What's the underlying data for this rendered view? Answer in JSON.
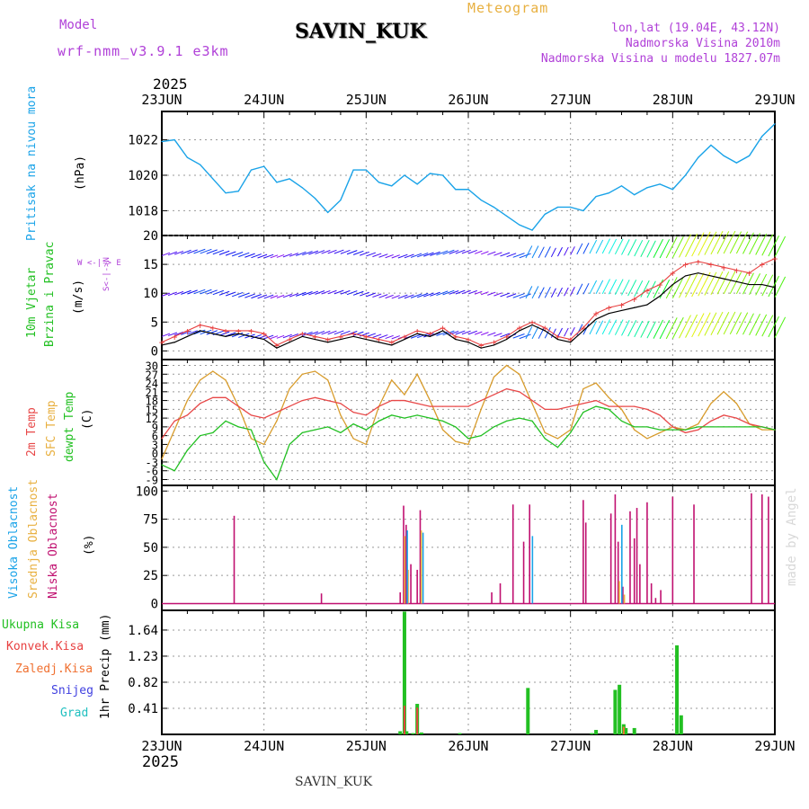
{
  "header": {
    "model_label": "Model",
    "model_name": "wrf-nmm_v3.9.1 e3km",
    "title": "SAVIN_KUK",
    "meteogram": "Meteogram",
    "lonlat": "lon,lat (19.04E, 43.12N)",
    "altitude": "Nadmorska Visina 2010m",
    "model_altitude": "Nadmorska Visina u modelu 1827.07m",
    "year_top": "2025",
    "year_bottom": "2025",
    "footer_station": "SAVIN_KUK",
    "credit": "made by Angel"
  },
  "colors": {
    "pressure": "#1aa3e8",
    "purple": "#b040d8",
    "orange": "#e8b040",
    "red": "#e84040",
    "green": "#22c022",
    "blue": "#4040e0",
    "cyan": "#20c0c0",
    "magenta": "#c01070",
    "sfc": "#d89c2c",
    "dew": "#22c022",
    "t2m": "#e84848",
    "credit": "#d8d8d8"
  },
  "panel_labels": {
    "pressure": {
      "name": "Pritisak na nivou mora",
      "unit": "(hPa)"
    },
    "wind": {
      "name1": "10m Vjetar",
      "name2": "Brzina i Pravac",
      "unit": "(m/s)",
      "compass": "W <-|-> E",
      "compass2": "S<-|->N"
    },
    "temp": {
      "name1": "2m Temp",
      "name2": "SFC Temp",
      "name3": "dewpt Temp",
      "unit": "(C)"
    },
    "cloud": {
      "name1": "Visoka Oblacnost",
      "name2": "Srednja Oblacnost",
      "name3": "Niska Oblacnost",
      "unit": "(%)"
    },
    "precip": {
      "legend": [
        "Ukupna Kisa",
        "Konvek.Kisa",
        "Zaledj.Kisa",
        "Snijeg",
        "Grad"
      ],
      "unit": "1hr Precip (mm)"
    }
  },
  "chart_data": [
    {
      "type": "line",
      "title": "Pritisak na nivou mora",
      "ylabel": "(hPa)",
      "x_unit": "hours from 23JUN 00",
      "ylim": [
        1016.6,
        1023.6
      ],
      "yticks": [
        "1018",
        "1020",
        "1022"
      ],
      "xticks": [
        "23JUN",
        "24JUN",
        "25JUN",
        "26JUN",
        "27JUN",
        "28JUN",
        "29JUN"
      ],
      "series": [
        {
          "name": "MSLP",
          "x": [
            0,
            3,
            6,
            9,
            12,
            15,
            18,
            21,
            24,
            27,
            30,
            33,
            36,
            39,
            42,
            45,
            48,
            51,
            54,
            57,
            60,
            63,
            66,
            69,
            72,
            75,
            78,
            81,
            84,
            87,
            90,
            93,
            96,
            99,
            102,
            105,
            108,
            111,
            114,
            117,
            120,
            123,
            126,
            129,
            132,
            135,
            138,
            141,
            144
          ],
          "values": [
            1021.9,
            1022.0,
            1021.0,
            1020.6,
            1019.8,
            1019.0,
            1019.1,
            1020.3,
            1020.5,
            1019.6,
            1019.8,
            1019.3,
            1018.7,
            1017.9,
            1018.6,
            1020.3,
            1020.3,
            1019.6,
            1019.4,
            1020.0,
            1019.5,
            1020.1,
            1020.0,
            1019.2,
            1019.2,
            1018.6,
            1018.2,
            1017.7,
            1017.2,
            1016.9,
            1017.8,
            1018.2,
            1018.2,
            1018.0,
            1018.8,
            1019.0,
            1019.4,
            1018.9,
            1019.3,
            1019.5,
            1019.2,
            1020.0,
            1021.0,
            1021.7,
            1021.1,
            1020.7,
            1021.1,
            1022.2,
            1022.9
          ]
        }
      ]
    },
    {
      "type": "line",
      "title": "10m Vjetar Brzina i Pravac",
      "ylabel": "(m/s)",
      "ylim": [
        -1.5,
        20
      ],
      "yticks": [
        "0",
        "5",
        "10",
        "15",
        "20"
      ],
      "series": [
        {
          "name": "wind speed",
          "x": [
            0,
            3,
            6,
            9,
            12,
            15,
            18,
            21,
            24,
            27,
            30,
            33,
            36,
            39,
            42,
            45,
            48,
            51,
            54,
            57,
            60,
            63,
            66,
            69,
            72,
            75,
            78,
            81,
            84,
            87,
            90,
            93,
            96,
            99,
            102,
            105,
            108,
            111,
            114,
            117,
            120,
            123,
            126,
            129,
            132,
            135,
            138,
            141,
            144
          ],
          "values": [
            1.0,
            1.5,
            2.5,
            3.5,
            3.0,
            2.5,
            3.0,
            2.5,
            2.0,
            0.5,
            1.5,
            2.5,
            2.0,
            1.5,
            2.0,
            2.5,
            2.0,
            1.5,
            1.0,
            2.0,
            3.0,
            2.5,
            3.5,
            2.0,
            1.5,
            0.5,
            1.0,
            2.0,
            3.5,
            4.5,
            3.5,
            2.0,
            1.5,
            3.5,
            5.5,
            6.5,
            7.0,
            7.5,
            8.0,
            9.5,
            11.5,
            13.0,
            13.5,
            13.0,
            12.5,
            12.0,
            11.5,
            11.5,
            11.0
          ]
        },
        {
          "name": "wind gust",
          "x": [
            0,
            3,
            6,
            9,
            12,
            15,
            18,
            21,
            24,
            27,
            30,
            33,
            36,
            39,
            42,
            45,
            48,
            51,
            54,
            57,
            60,
            63,
            66,
            69,
            72,
            75,
            78,
            81,
            84,
            87,
            90,
            93,
            96,
            99,
            102,
            105,
            108,
            111,
            114,
            117,
            120,
            123,
            126,
            129,
            132,
            135,
            138,
            141,
            144
          ],
          "values": [
            1.5,
            2.5,
            3.5,
            4.5,
            4.0,
            3.5,
            3.5,
            3.5,
            3.0,
            1.0,
            2.0,
            3.0,
            2.5,
            2.0,
            2.5,
            3.0,
            2.5,
            2.0,
            1.5,
            2.5,
            3.5,
            3.0,
            4.0,
            2.5,
            2.0,
            1.0,
            1.5,
            2.5,
            4.0,
            5.0,
            4.0,
            2.5,
            2.0,
            4.0,
            6.5,
            7.5,
            8.0,
            9.0,
            10.5,
            11.5,
            13.5,
            15.0,
            15.5,
            15.0,
            14.5,
            14.0,
            13.5,
            15.0,
            16.0
          ]
        }
      ]
    },
    {
      "type": "line",
      "title": "2m Temp / SFC Temp / dewpt Temp",
      "ylabel": "(C)",
      "ylim": [
        -11,
        32
      ],
      "yticks": [
        "-9",
        "-6",
        "-3",
        "0",
        "3",
        "6",
        "9",
        "12",
        "15",
        "18",
        "21",
        "24",
        "27",
        "30"
      ],
      "series": [
        {
          "name": "2m Temp",
          "x": [
            0,
            3,
            6,
            9,
            12,
            15,
            18,
            21,
            24,
            27,
            30,
            33,
            36,
            39,
            42,
            45,
            48,
            51,
            54,
            57,
            60,
            63,
            66,
            69,
            72,
            75,
            78,
            81,
            84,
            87,
            90,
            93,
            96,
            99,
            102,
            105,
            108,
            111,
            114,
            117,
            120,
            123,
            126,
            129,
            132,
            135,
            138,
            141,
            144
          ],
          "values": [
            5,
            11,
            13,
            17,
            19,
            19,
            16,
            13,
            12,
            14,
            16,
            18,
            19,
            18,
            17,
            14,
            13,
            16,
            18,
            18,
            17,
            16,
            16,
            16,
            16,
            18,
            20,
            22,
            21,
            18,
            15,
            15,
            16,
            17,
            18,
            16,
            16,
            16,
            15,
            13,
            9,
            7,
            8,
            11,
            13,
            12,
            10,
            9,
            8
          ]
        },
        {
          "name": "SFC Temp",
          "x": [
            0,
            3,
            6,
            9,
            12,
            15,
            18,
            21,
            24,
            27,
            30,
            33,
            36,
            39,
            42,
            45,
            48,
            51,
            54,
            57,
            60,
            63,
            66,
            69,
            72,
            75,
            78,
            81,
            84,
            87,
            90,
            93,
            96,
            99,
            102,
            105,
            108,
            111,
            114,
            117,
            120,
            123,
            126,
            129,
            132,
            135,
            138,
            141,
            144
          ],
          "values": [
            -2,
            8,
            18,
            25,
            28,
            25,
            16,
            5,
            3,
            11,
            22,
            27,
            28,
            25,
            13,
            5,
            3,
            16,
            25,
            20,
            27,
            18,
            8,
            4,
            3,
            15,
            26,
            30,
            27,
            17,
            7,
            5,
            8,
            22,
            24,
            19,
            15,
            8,
            5,
            7,
            9,
            8,
            10,
            17,
            21,
            17,
            10,
            8,
            8
          ]
        },
        {
          "name": "dewpt Temp",
          "x": [
            0,
            3,
            6,
            9,
            12,
            15,
            18,
            21,
            24,
            27,
            30,
            33,
            36,
            39,
            42,
            45,
            48,
            51,
            54,
            57,
            60,
            63,
            66,
            69,
            72,
            75,
            78,
            81,
            84,
            87,
            90,
            93,
            96,
            99,
            102,
            105,
            108,
            111,
            114,
            117,
            120,
            123,
            126,
            129,
            132,
            135,
            138,
            141,
            144
          ],
          "values": [
            -4,
            -6,
            1,
            6,
            7,
            11,
            9,
            8,
            -3,
            -9,
            3,
            7,
            8,
            9,
            7,
            10,
            8,
            11,
            13,
            12,
            13,
            12,
            11,
            9,
            5,
            6,
            9,
            11,
            12,
            11,
            5,
            2,
            7,
            14,
            16,
            15,
            11,
            9,
            9,
            8,
            8,
            8,
            9,
            9,
            9,
            9,
            9,
            9,
            8
          ]
        }
      ]
    },
    {
      "type": "bar",
      "title": "Oblacnost",
      "ylabel": "(%)",
      "ylim": [
        -6,
        105
      ],
      "yticks": [
        "0",
        "25",
        "50",
        "75",
        "100"
      ],
      "series": [
        {
          "name": "Niska Oblacnost",
          "x": [
            17,
            37.5,
            56,
            56.8,
            57.4,
            58.5,
            60,
            60.7,
            77.5,
            79.5,
            82.5,
            85,
            86.4,
            99,
            99.6,
            105.5,
            106.5,
            107.2,
            108.3,
            110,
            111,
            111.6,
            112.3,
            114,
            115,
            116,
            117.2,
            120,
            125,
            138.5,
            141,
            142.5
          ],
          "values": [
            78,
            9,
            10,
            87,
            70,
            35,
            30,
            83,
            10,
            18,
            88,
            55,
            88,
            92,
            72,
            80,
            97,
            55,
            15,
            82,
            58,
            85,
            35,
            90,
            18,
            5,
            12,
            95,
            88,
            98,
            97,
            95
          ]
        },
        {
          "name": "Srednja Oblacnost",
          "x": [
            56.8,
            57.6,
            60.7,
            107.2,
            108.4
          ],
          "values": [
            60,
            30,
            65,
            20,
            8
          ]
        },
        {
          "name": "Visoka Oblacnost",
          "x": [
            57.2,
            60.9,
            86.6,
            107.6
          ],
          "values": [
            65,
            63,
            60,
            70
          ]
        }
      ]
    },
    {
      "type": "bar",
      "title": "1hr Precip",
      "ylabel": "1hr Precip (mm)",
      "ylim": [
        0,
        1.95
      ],
      "yticks": [
        "0.41",
        "0.82",
        "1.23",
        "1.64"
      ],
      "series": [
        {
          "name": "Ukupna Kisa",
          "x": [
            56,
            57,
            57.5,
            59,
            60,
            61,
            70,
            86,
            101,
            102,
            106.5,
            107.5,
            108.5,
            109,
            111,
            121,
            122
          ],
          "values": [
            0.05,
            1.93,
            0.05,
            0.02,
            0.48,
            0.03,
            0.02,
            0.73,
            0.02,
            0.07,
            0.7,
            0.78,
            0.16,
            0.1,
            0.1,
            1.4,
            0.3
          ]
        },
        {
          "name": "Konvek.Kisa",
          "x": [
            57,
            60
          ],
          "values": [
            0.45,
            0.42
          ]
        },
        {
          "name": "Zaledj.Kisa",
          "x": [
            108.5
          ],
          "values": [
            0.12
          ]
        },
        {
          "name": "Snijeg",
          "x": [],
          "values": []
        },
        {
          "name": "Grad",
          "x": [],
          "values": []
        }
      ]
    }
  ]
}
